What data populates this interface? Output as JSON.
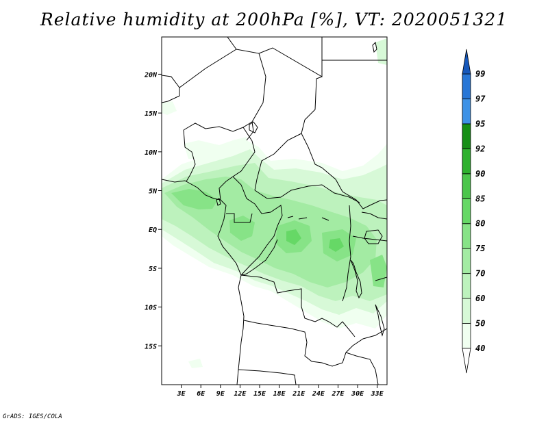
{
  "title": "Relative humidity at 200hPa [%], VT: 2020051321",
  "footer": "GrADS: IGES/COLA",
  "map": {
    "lat_labels": [
      "20N",
      "15N",
      "10N",
      "5N",
      "EQ",
      "5S",
      "10S",
      "15S"
    ],
    "lat_values": [
      20,
      15,
      10,
      5,
      0,
      -5,
      -10,
      -15
    ],
    "lon_labels": [
      "3E",
      "6E",
      "9E",
      "12E",
      "15E",
      "18E",
      "21E",
      "24E",
      "27E",
      "30E",
      "33E"
    ],
    "lon_values": [
      3,
      6,
      9,
      12,
      15,
      18,
      21,
      24,
      27,
      30,
      33
    ],
    "lat_range": [
      -20,
      24.8
    ],
    "lon_range": [
      0,
      34.5
    ]
  },
  "colorbar": {
    "labels": [
      "40",
      "50",
      "60",
      "70",
      "75",
      "80",
      "85",
      "90",
      "92",
      "95",
      "97",
      "99"
    ],
    "colors": [
      "#f0fff0",
      "#d7f9d7",
      "#bdf2bd",
      "#a3eba3",
      "#87e387",
      "#66d866",
      "#4bc64b",
      "#2eb12e",
      "#168f16",
      "#3e92e6",
      "#2776d6",
      "#1658bb"
    ],
    "below_color": "#ffffff",
    "above_color": "#1658bb"
  }
}
